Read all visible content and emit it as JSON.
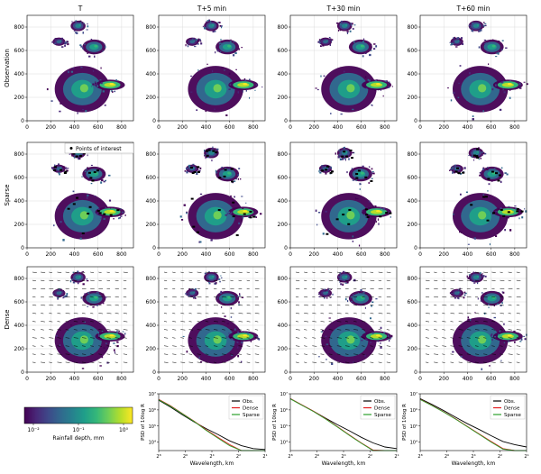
{
  "columns": [
    "T",
    "T+5 min",
    "T+30 min",
    "T+60 min"
  ],
  "rows": [
    "Observation",
    "Sparse",
    "Dense"
  ],
  "colors": {
    "viridis": [
      "#440154",
      "#482878",
      "#3e4989",
      "#31688e",
      "#26828e",
      "#1f9e89",
      "#35b779",
      "#6ece58",
      "#b5de2b",
      "#fde725"
    ],
    "obs": "#000000",
    "dense": "#e41a1c",
    "sparse": "#2ca02c",
    "points": "#000000",
    "arrows": "#000000"
  },
  "sparse_legend": "Points of interest",
  "colorbar": {
    "label": "Rainfall depth, mm",
    "ticks": [
      "10⁻²",
      "10⁻¹",
      "10⁰"
    ]
  },
  "chart_data": [
    {
      "type": "heatmap",
      "panels": "map grid 3 rows × 4 columns",
      "x_ticks": [
        "0",
        "200",
        "400",
        "600",
        "800"
      ],
      "y_ticks": [
        "0",
        "200",
        "400",
        "600",
        "800"
      ],
      "xlim": [
        0,
        900
      ],
      "ylim": [
        0,
        900
      ],
      "grid": true
    },
    {
      "type": "line",
      "panels": [
        "T+5 min",
        "T+30 min",
        "T+60 min"
      ],
      "xlabel": "Wavelength, km",
      "ylabel": "PSD of 10log R",
      "x_ticks": [
        "2⁸",
        "2⁶",
        "2⁴",
        "2²",
        "2¹"
      ],
      "y_ticks": [
        "10⁷",
        "10⁶",
        "10⁵",
        "10⁴"
      ],
      "ylim": [
        3000,
        10000000
      ],
      "legend": "top-right",
      "x": [
        1,
        2,
        3,
        4,
        5,
        6,
        7,
        8,
        9,
        10
      ],
      "series": [
        {
          "name": "Obs.",
          "panel_values": [
            [
              4000000,
              1500000,
              500000,
              180000,
              70000,
              30000,
              12000,
              6000,
              4000,
              3500
            ],
            [
              5000000,
              2000000,
              800000,
              300000,
              120000,
              50000,
              20000,
              9000,
              5000,
              4000
            ],
            [
              5000000,
              2200000,
              900000,
              350000,
              140000,
              60000,
              25000,
              11000,
              7000,
              5000
            ]
          ]
        },
        {
          "name": "Dense",
          "panel_values": [
            [
              4500000,
              1800000,
              600000,
              200000,
              60000,
              20000,
              7000,
              2500,
              1200,
              900
            ],
            [
              5000000,
              2000000,
              800000,
              280000,
              90000,
              28000,
              9000,
              3200,
              1400,
              1000
            ],
            [
              4500000,
              1900000,
              750000,
              280000,
              95000,
              32000,
              11000,
              4000,
              1800,
              1200
            ]
          ]
        },
        {
          "name": "Sparse",
          "panel_values": [
            [
              4300000,
              1700000,
              580000,
              190000,
              55000,
              18000,
              6000,
              2000,
              1000,
              800
            ],
            [
              4800000,
              1900000,
              760000,
              270000,
              85000,
              26000,
              8500,
              3000,
              1300,
              900
            ],
            [
              4400000,
              1850000,
              720000,
              270000,
              90000,
              30000,
              10000,
              3700,
              1600,
              1100
            ]
          ]
        }
      ]
    }
  ]
}
